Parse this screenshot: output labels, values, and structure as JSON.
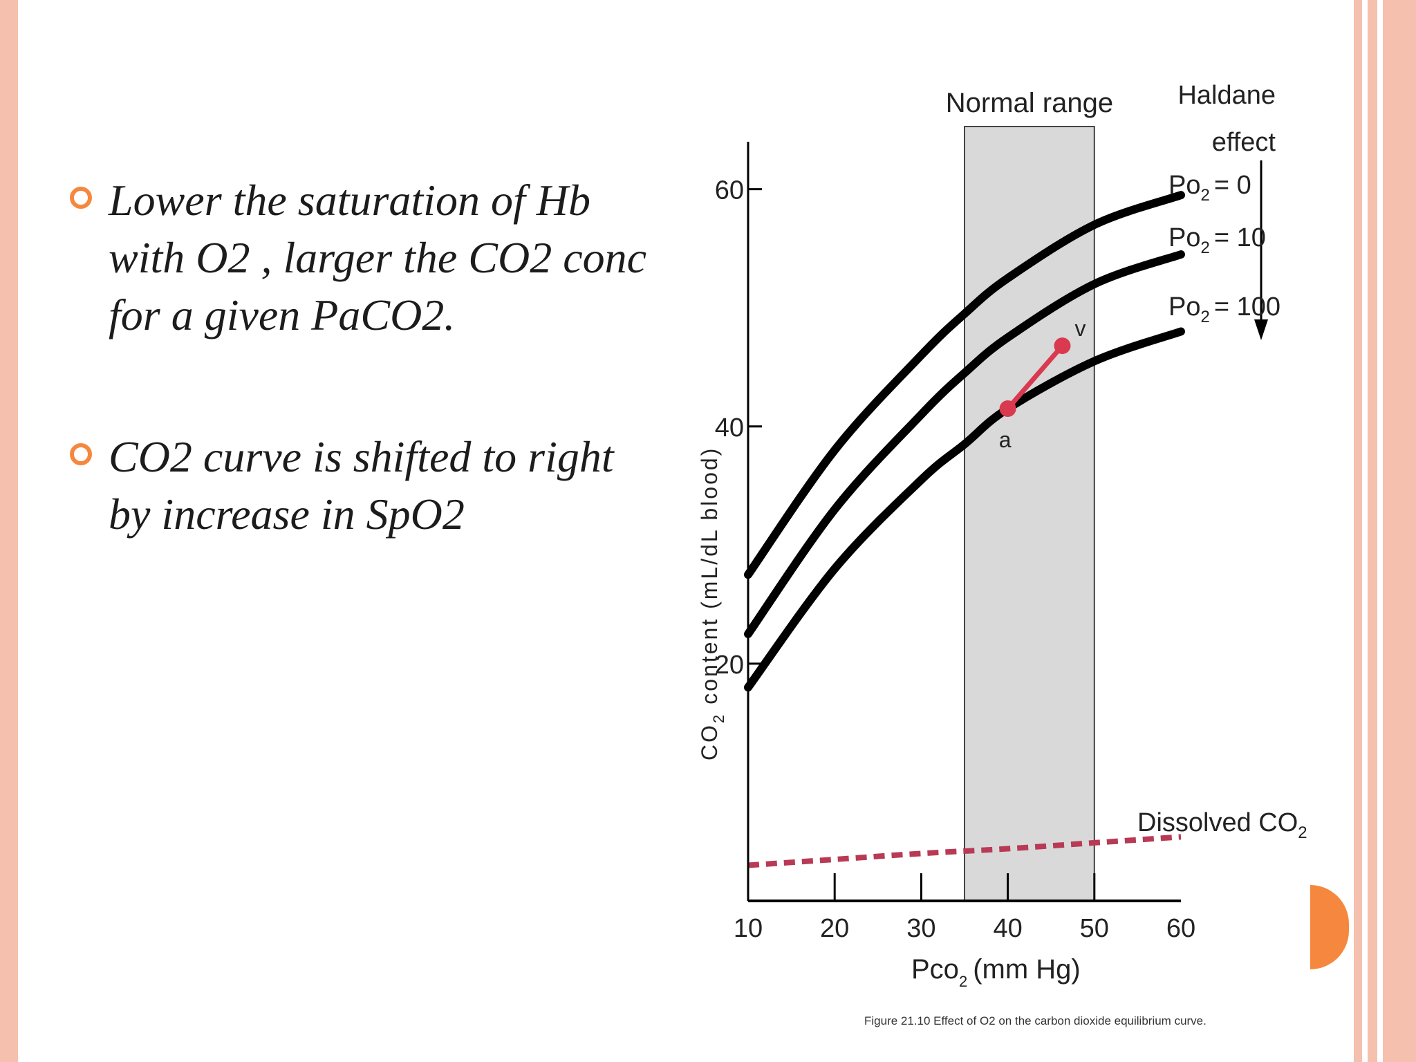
{
  "slide": {
    "bullets": [
      {
        "text": "Lower the saturation of Hb with O2 , larger the CO2 conc for a given PaCO2."
      },
      {
        "text": "CO2 curve is shifted to right by increase in SpO2"
      }
    ],
    "colors": {
      "accent": "#f5883e",
      "border": "#f5c0ad",
      "curve": "#000000",
      "dissolved": "#b83a55",
      "point": "#d93a4f",
      "normal_band": "#d9d9d9"
    }
  },
  "chart_data": {
    "type": "line",
    "xlabel_main": "Pco",
    "xlabel_sub": "2",
    "xlabel_unit": "(mm Hg)",
    "ylabel_main": "CO",
    "ylabel_sub": "2",
    "ylabel_rest": "content (mL/dL blood)",
    "xlim": [
      10,
      60
    ],
    "ylim": [
      0,
      64
    ],
    "x_ticks": [
      10,
      20,
      30,
      40,
      50,
      60
    ],
    "y_ticks": [
      20,
      40,
      60
    ],
    "normal_range": {
      "label": "Normal range",
      "x": [
        35,
        50
      ]
    },
    "haldane_effect": {
      "line1": "Haldane",
      "line2": "effect"
    },
    "series": [
      {
        "label_main": "Po",
        "label_sub": "2",
        "label_val": "= 0",
        "x": [
          10,
          20,
          30,
          35,
          40,
          50,
          60
        ],
        "y": [
          27.5,
          38,
          46,
          49.5,
          52.5,
          57,
          59.5
        ]
      },
      {
        "label_main": "Po",
        "label_sub": "2",
        "label_val": "= 10",
        "x": [
          10,
          20,
          30,
          35,
          40,
          50,
          60
        ],
        "y": [
          22.5,
          33,
          41,
          44.5,
          47.5,
          52,
          54.5
        ]
      },
      {
        "label_main": "Po",
        "label_sub": "2",
        "label_val": "= 100",
        "x": [
          10,
          20,
          30,
          35,
          40,
          50,
          60
        ],
        "y": [
          18,
          28,
          35.5,
          38.5,
          41.5,
          45.5,
          48
        ]
      }
    ],
    "dissolved": {
      "label_main": "Dissolved CO",
      "label_sub": "2",
      "x": [
        10,
        20,
        30,
        40,
        50,
        60
      ],
      "y": [
        3.0,
        3.5,
        4.0,
        4.4,
        4.9,
        5.4
      ]
    },
    "points": [
      {
        "label": "a",
        "x": 40,
        "y": 41.5
      },
      {
        "label": "v",
        "x": 46.3,
        "y": 46.8
      }
    ],
    "caption": "Figure 21.10 Effect of O2 on the carbon dioxide equilibrium curve."
  }
}
